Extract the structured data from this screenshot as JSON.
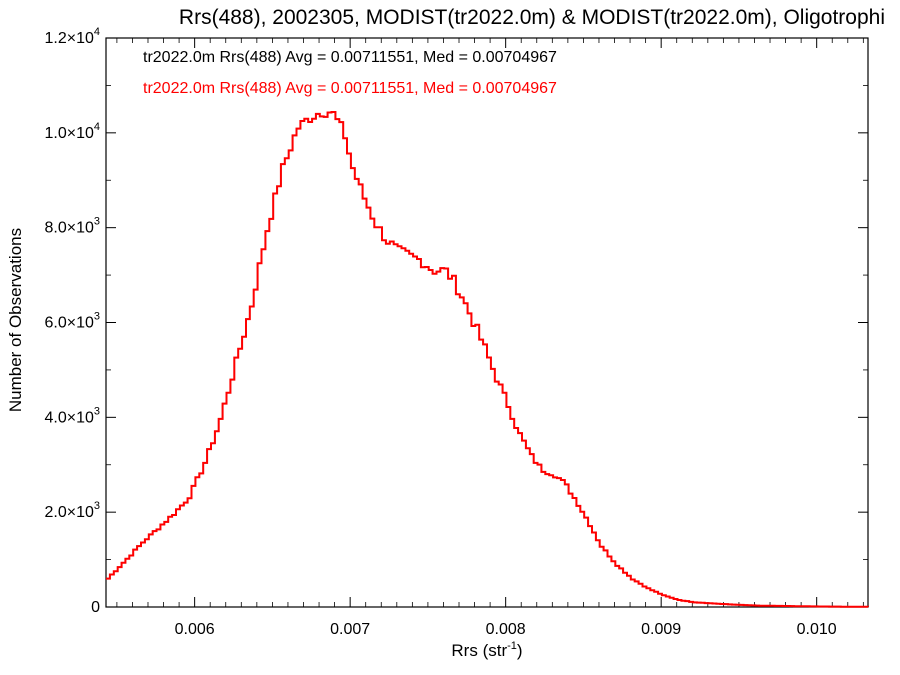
{
  "chart_data": {
    "type": "line",
    "title": "Rrs(488), 2002305, MODIST(tr2022.0m) & MODIST(tr2022.0m), Oligotrophi",
    "xlabel_main": "Rrs (str",
    "xlabel_sup": "-1",
    "xlabel_close": ")",
    "ylabel": "Number of Observations",
    "xlim": [
      0.00543,
      0.01033
    ],
    "ylim": [
      0,
      12000
    ],
    "x_ticks": [
      {
        "value": 0.006,
        "label": "0.006"
      },
      {
        "value": 0.007,
        "label": "0.007"
      },
      {
        "value": 0.008,
        "label": "0.008"
      },
      {
        "value": 0.009,
        "label": "0.009"
      },
      {
        "value": 0.01,
        "label": "0.010"
      }
    ],
    "y_ticks": [
      {
        "value": 0,
        "mant": "0",
        "exp": ""
      },
      {
        "value": 2000,
        "mant": "2.0×10",
        "exp": "3"
      },
      {
        "value": 4000,
        "mant": "4.0×10",
        "exp": "3"
      },
      {
        "value": 6000,
        "mant": "6.0×10",
        "exp": "3"
      },
      {
        "value": 8000,
        "mant": "8.0×10",
        "exp": "3"
      },
      {
        "value": 10000,
        "mant": "1.0×10",
        "exp": "4"
      },
      {
        "value": 12000,
        "mant": "1.2×10",
        "exp": "4"
      }
    ],
    "annotations": [
      {
        "text": "tr2022.0m Rrs(488) Avg = 0.00711551, Med = 0.00704967",
        "color": "#000000"
      },
      {
        "text": "tr2022.0m Rrs(488) Avg = 0.00711551, Med = 0.00704967",
        "color": "#ff0000"
      }
    ],
    "grid": false,
    "series": [
      {
        "color": "#000000",
        "x": [
          0.00543,
          0.00555,
          0.00565,
          0.00575,
          0.00585,
          0.00595,
          0.00605,
          0.00615,
          0.00625,
          0.00635,
          0.00645,
          0.00655,
          0.00665,
          0.00672,
          0.0068,
          0.00687,
          0.00695,
          0.007,
          0.00707,
          0.00715,
          0.00722,
          0.0073,
          0.00737,
          0.00745,
          0.00752,
          0.0076,
          0.00765,
          0.0077,
          0.00777,
          0.00785,
          0.00792,
          0.008,
          0.00807,
          0.00815,
          0.00822,
          0.0083,
          0.00837,
          0.00845,
          0.00852,
          0.0086,
          0.0087,
          0.0088,
          0.0089,
          0.009,
          0.0091,
          0.0092,
          0.0094,
          0.0096,
          0.0099,
          0.0101,
          0.01033
        ],
        "y": [
          600,
          1000,
          1350,
          1650,
          1950,
          2300,
          3000,
          3900,
          5100,
          6300,
          7900,
          9200,
          10100,
          10300,
          10450,
          10450,
          10000,
          9300,
          8700,
          8100,
          7750,
          7500,
          7400,
          7300,
          7100,
          7100,
          6900,
          6600,
          6100,
          5500,
          4900,
          4300,
          3700,
          3200,
          2900,
          2800,
          2600,
          2200,
          1800,
          1300,
          900,
          600,
          400,
          250,
          150,
          100,
          60,
          30,
          15,
          8,
          5
        ]
      },
      {
        "color": "#ff0000",
        "x": [
          0.00543,
          0.00555,
          0.00565,
          0.00575,
          0.00585,
          0.00595,
          0.00605,
          0.00615,
          0.00625,
          0.00635,
          0.00645,
          0.00655,
          0.00665,
          0.00672,
          0.0068,
          0.00687,
          0.00695,
          0.007,
          0.00707,
          0.00715,
          0.00722,
          0.0073,
          0.00737,
          0.00745,
          0.00752,
          0.0076,
          0.00765,
          0.0077,
          0.00777,
          0.00785,
          0.00792,
          0.008,
          0.00807,
          0.00815,
          0.00822,
          0.0083,
          0.00837,
          0.00845,
          0.00852,
          0.0086,
          0.0087,
          0.0088,
          0.0089,
          0.009,
          0.0091,
          0.0092,
          0.0094,
          0.0096,
          0.0099,
          0.0101,
          0.01033
        ],
        "y": [
          600,
          1000,
          1350,
          1650,
          1950,
          2300,
          3000,
          3900,
          5100,
          6300,
          7900,
          9200,
          10100,
          10300,
          10450,
          10450,
          10000,
          9300,
          8700,
          8100,
          7750,
          7500,
          7400,
          7300,
          7100,
          7100,
          6900,
          6600,
          6100,
          5500,
          4900,
          4300,
          3700,
          3200,
          2900,
          2800,
          2600,
          2200,
          1800,
          1300,
          900,
          600,
          400,
          250,
          150,
          100,
          60,
          30,
          15,
          8,
          5
        ]
      }
    ]
  }
}
